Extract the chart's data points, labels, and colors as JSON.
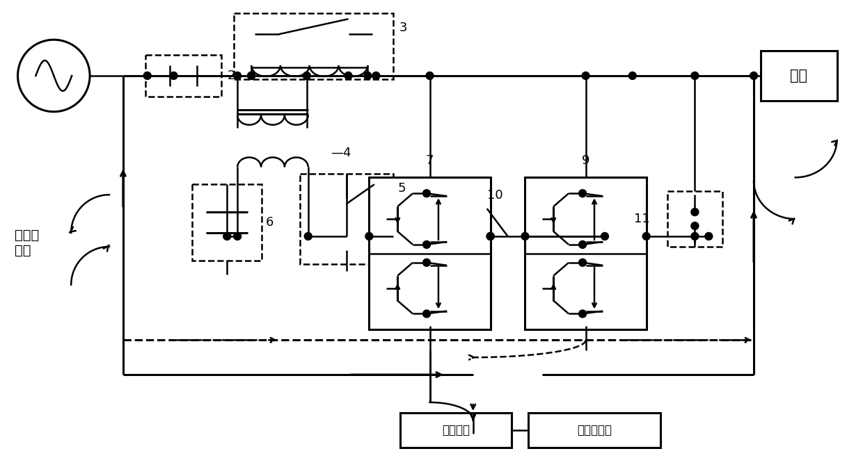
{
  "bg_color": "#ffffff",
  "fig_width": 12.4,
  "fig_height": 6.59,
  "dpi": 100,
  "labels": {
    "smart_grid": "智能配\n电网",
    "load": "负载",
    "energy_storage": "储能系统",
    "distributed_power": "分布式电源"
  }
}
